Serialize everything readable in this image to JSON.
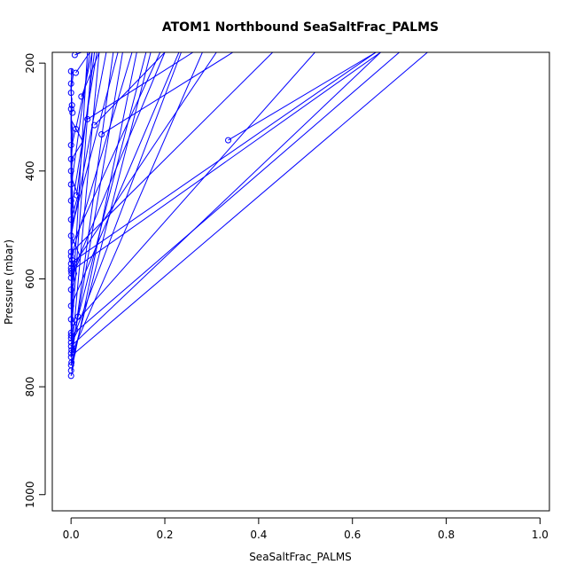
{
  "chart_data": {
    "type": "line",
    "title": "ATOM1 Northbound SeaSaltFrac_PALMS",
    "xlabel": "SeaSaltFrac_PALMS",
    "ylabel": "Pressure (mbar)",
    "xlim": [
      -0.04,
      1.02
    ],
    "ylim": [
      1030,
      180
    ],
    "y_reversed": true,
    "grid": false,
    "x_ticks": [
      "0.0",
      "0.2",
      "0.4",
      "0.6",
      "0.8",
      "1.0"
    ],
    "y_ticks": [
      "200",
      "400",
      "600",
      "800",
      "1000"
    ],
    "series_color": "#0000ff",
    "series": [
      {
        "x": [
          0.0,
          0.005,
          0.0,
          0.002,
          0.0,
          0.001,
          0.0,
          0.003,
          0.0,
          0.001,
          0.0,
          0.002,
          0.0
        ],
        "y": [
          780,
          760,
          740,
          720,
          700,
          675,
          650,
          620,
          590,
          560,
          530,
          500,
          470
        ]
      },
      {
        "x": [
          0.0,
          0.01,
          0.0,
          0.004,
          0.0,
          0.002,
          0.0,
          0.006,
          0.0,
          0.001,
          0.0,
          0.003,
          0.0
        ],
        "y": [
          760,
          735,
          710,
          690,
          670,
          640,
          610,
          585,
          555,
          520,
          490,
          455,
          425
        ]
      },
      {
        "x": [
          0.0,
          0.003,
          0.0,
          0.001,
          0.0,
          0.002,
          0.0,
          0.001,
          0.0,
          0.002,
          0.0,
          0.001
        ],
        "y": [
          740,
          710,
          685,
          655,
          625,
          600,
          570,
          545,
          515,
          480,
          440,
          400
        ]
      },
      {
        "x": [
          0.0,
          0.015,
          0.0,
          0.005,
          0.0,
          0.008,
          0.0,
          0.002,
          0.0,
          0.004,
          0.0
        ],
        "y": [
          720,
          695,
          670,
          645,
          615,
          585,
          560,
          530,
          500,
          460,
          420
        ]
      },
      {
        "x": [
          0.0,
          0.002,
          0.0,
          0.001,
          0.0,
          0.003,
          0.0,
          0.001,
          0.0,
          0.002,
          0.0,
          0.001
        ],
        "y": [
          700,
          670,
          640,
          610,
          580,
          550,
          520,
          490,
          455,
          420,
          385,
          350
        ]
      },
      {
        "x": [
          0.0,
          0.004,
          0.0,
          0.012,
          0.0,
          0.002,
          0.0,
          0.015,
          0.0,
          0.003
        ],
        "y": [
          680,
          650,
          620,
          590,
          560,
          525,
          490,
          445,
          410,
          375
        ]
      },
      {
        "x": [
          0.0,
          0.001,
          0.0,
          0.002,
          0.0,
          0.001,
          0.0,
          0.003,
          0.0,
          0.001,
          0.0
        ],
        "y": [
          650,
          620,
          590,
          560,
          530,
          500,
          470,
          440,
          410,
          380,
          350
        ]
      },
      {
        "x": [
          0.0,
          0.003,
          0.0,
          0.001,
          0.0,
          0.002,
          0.0,
          0.001,
          0.0,
          0.002
        ],
        "y": [
          620,
          590,
          565,
          540,
          505,
          470,
          435,
          400,
          365,
          330
        ]
      },
      {
        "x": [
          0.0,
          0.02,
          0.0,
          0.008,
          0.0,
          0.002,
          0.0,
          0.01
        ],
        "y": [
          600,
          560,
          520,
          480,
          440,
          400,
          360,
          320
        ]
      },
      {
        "x": [
          0.0,
          0.001,
          0.0,
          0.002,
          0.0,
          0.001,
          0.0,
          0.003,
          0.0,
          0.001
        ],
        "y": [
          580,
          545,
          515,
          480,
          450,
          415,
          380,
          345,
          315,
          285
        ]
      },
      {
        "x": [
          0.0,
          0.002,
          0.0,
          0.001,
          0.0,
          0.002,
          0.0,
          0.001,
          0.0
        ],
        "y": [
          550,
          515,
          480,
          445,
          410,
          375,
          340,
          305,
          280
        ]
      },
      {
        "x": [
          0.0,
          0.004,
          0.0,
          0.001,
          0.0,
          0.025,
          0.0,
          0.002
        ],
        "y": [
          520,
          485,
          450,
          415,
          380,
          345,
          305,
          265
        ]
      },
      {
        "x": [
          0.0,
          0.001,
          0.0,
          0.002,
          0.0,
          0.001,
          0.0
        ],
        "y": [
          480,
          440,
          400,
          360,
          320,
          280,
          240
        ]
      },
      {
        "x": [
          0.0,
          0.003,
          0.0,
          0.001,
          0.0,
          0.002,
          0.0,
          0.005
        ],
        "y": [
          450,
          415,
          380,
          345,
          310,
          280,
          250,
          220
        ]
      },
      {
        "x": [
          0.0,
          0.002,
          0.0,
          0.001,
          0.0,
          0.003
        ],
        "y": [
          400,
          360,
          320,
          280,
          240,
          210
        ]
      },
      {
        "x": [
          0.0,
          0.004,
          0.0,
          0.001,
          0.0,
          0.001,
          0.0
        ],
        "y": [
          360,
          330,
          300,
          270,
          245,
          225,
          210
        ]
      },
      {
        "x": [
          0.0,
          0.66
        ],
        "y": [
          725,
          180
        ]
      },
      {
        "x": [
          0.002,
          0.76
        ],
        "y": [
          742,
          180
        ]
      },
      {
        "x": [
          0.001,
          0.7
        ],
        "y": [
          705,
          180
        ]
      },
      {
        "x": [
          0.0,
          0.52
        ],
        "y": [
          690,
          180
        ]
      },
      {
        "x": [
          0.003,
          0.28
        ],
        "y": [
          735,
          180
        ]
      },
      {
        "x": [
          0.0,
          0.17
        ],
        "y": [
          760,
          180
        ]
      },
      {
        "x": [
          0.001,
          0.14
        ],
        "y": [
          770,
          180
        ]
      },
      {
        "x": [
          0.0,
          0.11
        ],
        "y": [
          745,
          180
        ]
      },
      {
        "x": [
          0.0,
          0.09
        ],
        "y": [
          755,
          180
        ]
      },
      {
        "x": [
          0.002,
          0.06
        ],
        "y": [
          730,
          180
        ]
      },
      {
        "x": [
          0.0,
          0.045
        ],
        "y": [
          710,
          180
        ]
      },
      {
        "x": [
          0.0,
          0.035
        ],
        "y": [
          685,
          180
        ]
      },
      {
        "x": [
          0.0,
          0.235
        ],
        "y": [
          720,
          180
        ]
      },
      {
        "x": [
          0.001,
          0.66
        ],
        "y": [
          585,
          180
        ]
      },
      {
        "x": [
          0.0,
          0.65
        ],
        "y": [
          570,
          180
        ]
      },
      {
        "x": [
          0.002,
          0.43
        ],
        "y": [
          550,
          180
        ]
      },
      {
        "x": [
          0.001,
          0.31
        ],
        "y": [
          580,
          180
        ]
      },
      {
        "x": [
          0.0,
          0.2
        ],
        "y": [
          595,
          180
        ]
      },
      {
        "x": [
          0.0,
          0.13
        ],
        "y": [
          560,
          180
        ]
      },
      {
        "x": [
          0.003,
          0.1
        ],
        "y": [
          500,
          180
        ]
      },
      {
        "x": [
          0.0,
          0.075
        ],
        "y": [
          520,
          180
        ]
      },
      {
        "x": [
          0.001,
          0.055
        ],
        "y": [
          470,
          180
        ]
      },
      {
        "x": [
          0.0,
          0.04
        ],
        "y": [
          430,
          180
        ]
      },
      {
        "x": [
          0.0,
          0.19
        ],
        "y": [
          540,
          180
        ]
      },
      {
        "x": [
          0.015,
          0.16
        ],
        "y": [
          670,
          180
        ]
      },
      {
        "x": [
          0.0,
          0.23
        ],
        "y": [
          650,
          180
        ]
      },
      {
        "x": [
          0.335,
          0.65
        ],
        "y": [
          343,
          180
        ]
      },
      {
        "x": [
          0.065,
          0.345
        ],
        "y": [
          332,
          180
        ]
      },
      {
        "x": [
          0.035,
          0.26
        ],
        "y": [
          304,
          180
        ]
      },
      {
        "x": [
          0.05,
          0.2
        ],
        "y": [
          315,
          180
        ]
      },
      {
        "x": [
          0.022,
          0.06
        ],
        "y": [
          262,
          180
        ]
      },
      {
        "x": [
          0.01,
          0.04
        ],
        "y": [
          218,
          180
        ]
      },
      {
        "x": [
          0.012,
          0.05
        ],
        "y": [
          445,
          180
        ]
      },
      {
        "x": [
          0.01,
          0.045
        ],
        "y": [
          322,
          180
        ]
      },
      {
        "x": [
          0.008,
          0.022
        ],
        "y": [
          185,
          180
        ]
      }
    ],
    "markers": [
      [
        0.0,
        780
      ],
      [
        0.0,
        770
      ],
      [
        0.0,
        760
      ],
      [
        0.001,
        755
      ],
      [
        0.0,
        745
      ],
      [
        0.0,
        738
      ],
      [
        0.001,
        732
      ],
      [
        0.0,
        725
      ],
      [
        0.0,
        718
      ],
      [
        0.0,
        710
      ],
      [
        0.0,
        705
      ],
      [
        0.0,
        700
      ],
      [
        0.015,
        670
      ],
      [
        0.0,
        675
      ],
      [
        0.0,
        650
      ],
      [
        0.0,
        620
      ],
      [
        0.0,
        598
      ],
      [
        0.001,
        590
      ],
      [
        0.0,
        585
      ],
      [
        0.0,
        580
      ],
      [
        0.0,
        572
      ],
      [
        0.002,
        565
      ],
      [
        0.0,
        558
      ],
      [
        0.0,
        550
      ],
      [
        0.0,
        520
      ],
      [
        0.0,
        490
      ],
      [
        0.0,
        455
      ],
      [
        0.012,
        445
      ],
      [
        0.0,
        425
      ],
      [
        0.0,
        400
      ],
      [
        0.0,
        378
      ],
      [
        0.0,
        352
      ],
      [
        0.335,
        343
      ],
      [
        0.065,
        332
      ],
      [
        0.01,
        322
      ],
      [
        0.05,
        315
      ],
      [
        0.035,
        304
      ],
      [
        0.003,
        292
      ],
      [
        0.0,
        285
      ],
      [
        0.002,
        278
      ],
      [
        0.022,
        262
      ],
      [
        0.0,
        255
      ],
      [
        0.0,
        238
      ],
      [
        0.01,
        218
      ],
      [
        0.0,
        215
      ],
      [
        0.008,
        185
      ]
    ]
  }
}
